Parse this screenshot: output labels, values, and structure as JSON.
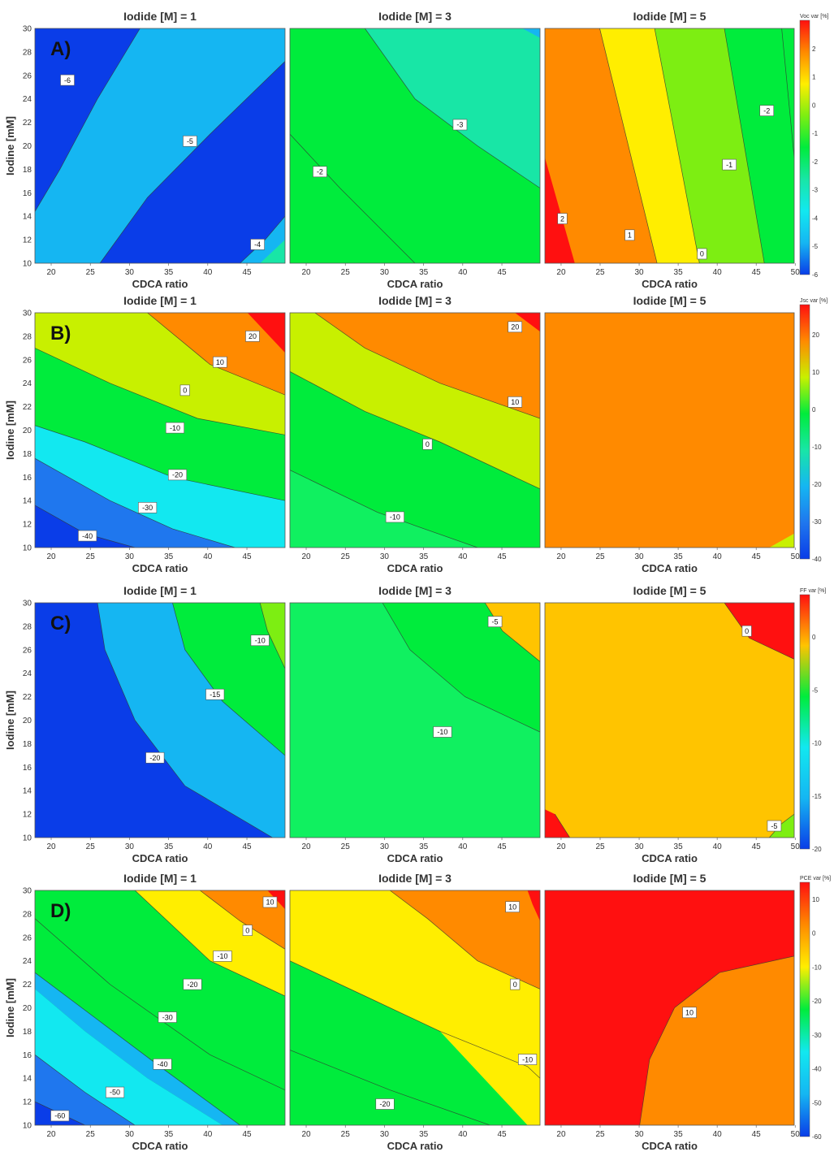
{
  "chart_data": [
    {
      "type": "heatmap",
      "row_label": "A)",
      "colorbar_title": "Voc var [%]",
      "colorbar_ticks": [
        "2",
        "1",
        "0",
        "-1",
        "-2",
        "-3",
        "-4",
        "-5",
        "-6"
      ],
      "colorbar_range": [
        -6,
        3
      ],
      "panels": [
        {
          "title": "Iodide [M] = 1",
          "xlabel": "CDCA ratio",
          "ylabel": "Iodine [mM]",
          "x_ticks": [
            "20",
            "25",
            "30",
            "35",
            "40",
            "45"
          ],
          "y_ticks": [
            "30",
            "28",
            "26",
            "24",
            "22",
            "20",
            "18",
            "16",
            "14",
            "12",
            "10"
          ],
          "contour_labels": [
            "-6",
            "-5",
            "-4"
          ]
        },
        {
          "title": "Iodide [M] = 3",
          "xlabel": "CDCA ratio",
          "ylabel": "",
          "x_ticks": [
            "20",
            "25",
            "30",
            "35",
            "40",
            "45"
          ],
          "y_ticks": [],
          "contour_labels": [
            "-3",
            "-2"
          ]
        },
        {
          "title": "Iodide [M] = 5",
          "xlabel": "CDCA ratio",
          "ylabel": "",
          "x_ticks": [
            "20",
            "25",
            "30",
            "35",
            "40",
            "45",
            "50"
          ],
          "y_ticks": [],
          "contour_labels": [
            "-2",
            "-1",
            "2",
            "1",
            "0"
          ]
        }
      ]
    },
    {
      "type": "heatmap",
      "row_label": "B)",
      "colorbar_title": "Jsc var [%]",
      "colorbar_ticks": [
        "20",
        "10",
        "0",
        "-10",
        "-20",
        "-30",
        "-40"
      ],
      "colorbar_range": [
        -40,
        28
      ],
      "panels": [
        {
          "title": "Iodide [M] = 1",
          "xlabel": "CDCA ratio",
          "ylabel": "Iodine [mM]",
          "x_ticks": [
            "20",
            "25",
            "30",
            "35",
            "40",
            "45"
          ],
          "y_ticks": [
            "30",
            "28",
            "26",
            "24",
            "22",
            "20",
            "18",
            "16",
            "14",
            "12",
            "10"
          ],
          "contour_labels": [
            "20",
            "10",
            "0",
            "-10",
            "-20",
            "-30",
            "-40"
          ]
        },
        {
          "title": "Iodide [M] = 3",
          "xlabel": "CDCA ratio",
          "ylabel": "",
          "x_ticks": [
            "20",
            "25",
            "30",
            "35",
            "40",
            "45"
          ],
          "y_ticks": [],
          "contour_labels": [
            "20",
            "10",
            "0",
            "-10"
          ]
        },
        {
          "title": "Iodide [M] = 5",
          "xlabel": "CDCA ratio",
          "ylabel": "",
          "x_ticks": [
            "20",
            "25",
            "30",
            "35",
            "40",
            "45",
            "50"
          ],
          "y_ticks": [],
          "contour_labels": []
        }
      ]
    },
    {
      "type": "heatmap",
      "row_label": "C)",
      "colorbar_title": "FF var [%]",
      "colorbar_ticks": [
        "0",
        "-5",
        "-10",
        "-15",
        "-20"
      ],
      "colorbar_range": [
        -20,
        4
      ],
      "panels": [
        {
          "title": "Iodide [M] = 1",
          "xlabel": "CDCA ratio",
          "ylabel": "Iodine [mM]",
          "x_ticks": [
            "20",
            "25",
            "30",
            "35",
            "40",
            "45"
          ],
          "y_ticks": [
            "30",
            "28",
            "26",
            "24",
            "22",
            "20",
            "18",
            "16",
            "14",
            "12",
            "10"
          ],
          "contour_labels": [
            "-10",
            "-15",
            "-20"
          ]
        },
        {
          "title": "Iodide [M] = 3",
          "xlabel": "CDCA ratio",
          "ylabel": "",
          "x_ticks": [
            "20",
            "25",
            "30",
            "35",
            "40",
            "45"
          ],
          "y_ticks": [],
          "contour_labels": [
            "-5",
            "-10"
          ]
        },
        {
          "title": "Iodide [M] = 5",
          "xlabel": "CDCA ratio",
          "ylabel": "",
          "x_ticks": [
            "20",
            "25",
            "30",
            "35",
            "40",
            "45",
            "50"
          ],
          "y_ticks": [],
          "contour_labels": [
            "0",
            "-5"
          ]
        }
      ]
    },
    {
      "type": "heatmap",
      "row_label": "D)",
      "colorbar_title": "PCE var [%]",
      "colorbar_ticks": [
        "10",
        "0",
        "-10",
        "-20",
        "-30",
        "-40",
        "-50",
        "-60"
      ],
      "colorbar_range": [
        -60,
        15
      ],
      "panels": [
        {
          "title": "Iodide [M] = 1",
          "xlabel": "CDCA ratio",
          "ylabel": "Iodine [mM]",
          "x_ticks": [
            "20",
            "25",
            "30",
            "35",
            "40",
            "45"
          ],
          "y_ticks": [
            "30",
            "28",
            "26",
            "24",
            "22",
            "20",
            "18",
            "16",
            "14",
            "12",
            "10"
          ],
          "contour_labels": [
            "10",
            "0",
            "-10",
            "-20",
            "-30",
            "-40",
            "-50",
            "-60"
          ]
        },
        {
          "title": "Iodide [M] = 3",
          "xlabel": "CDCA ratio",
          "ylabel": "",
          "x_ticks": [
            "20",
            "25",
            "30",
            "35",
            "40",
            "45"
          ],
          "y_ticks": [],
          "contour_labels": [
            "10",
            "0",
            "-10",
            "-20"
          ]
        },
        {
          "title": "Iodide [M] = 5",
          "xlabel": "CDCA ratio",
          "ylabel": "",
          "x_ticks": [
            "20",
            "25",
            "30",
            "35",
            "40",
            "45",
            "50"
          ],
          "y_ticks": [],
          "contour_labels": [
            "10"
          ]
        }
      ]
    }
  ]
}
